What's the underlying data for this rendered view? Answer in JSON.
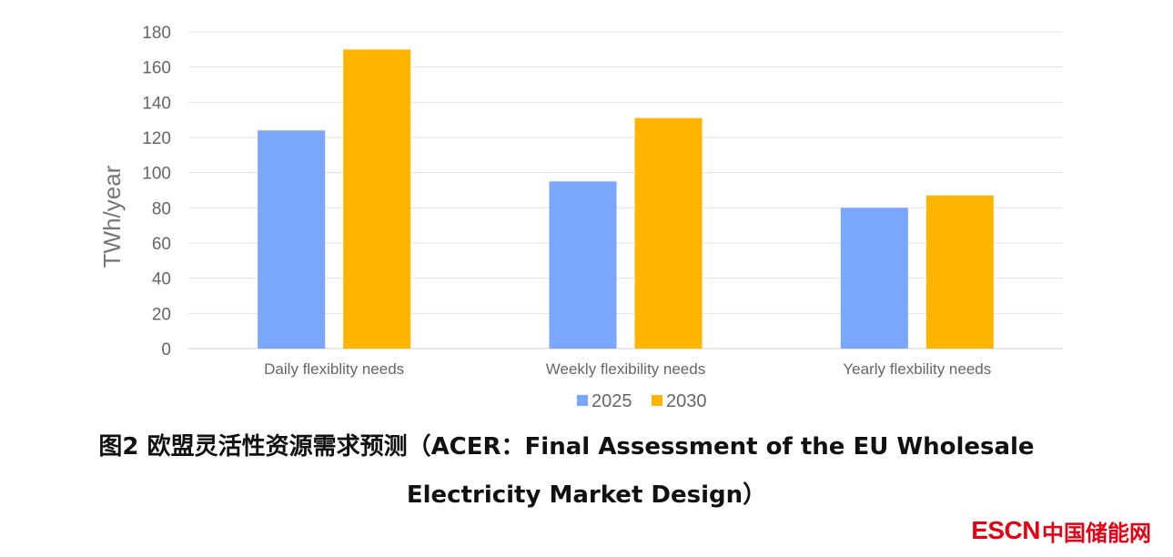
{
  "chart_data": {
    "type": "bar",
    "categories": [
      "Daily flexiblity needs",
      "Weekly flexibility needs",
      "Yearly flexbility needs"
    ],
    "series": [
      {
        "name": "2025",
        "values": [
          124,
          95,
          80
        ],
        "color": "#7aa6fb"
      },
      {
        "name": "2030",
        "values": [
          170,
          131,
          87
        ],
        "color": "#ffb400"
      }
    ],
    "ylabel": "TWh/year",
    "xlabel": "",
    "ylim": [
      0,
      180
    ],
    "yticks": [
      0,
      20,
      40,
      60,
      80,
      100,
      120,
      140,
      160,
      180
    ],
    "grid": true,
    "legend_position": "bottom"
  },
  "caption": {
    "line1": "图2 欧盟灵活性资源需求预测（ACER：Final Assessment of the EU Wholesale",
    "line2": "Electricity Market Design）"
  },
  "logo": {
    "en_text": "ESCN",
    "cn_text": "中国储能网",
    "color": "#e60012"
  }
}
